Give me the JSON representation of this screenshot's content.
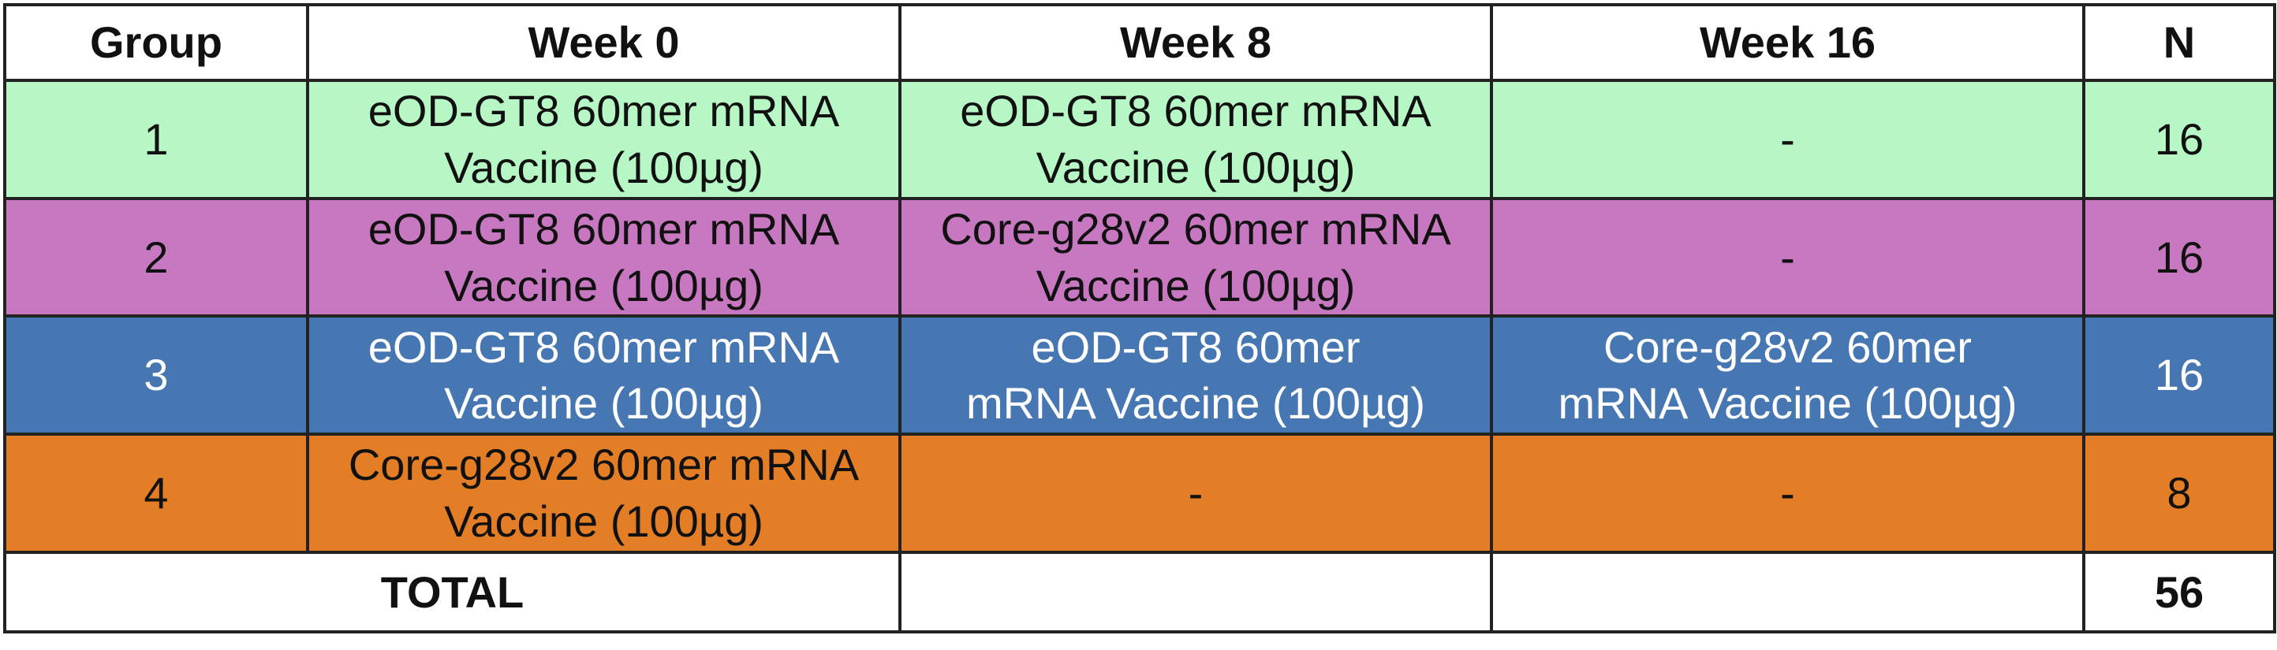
{
  "table": {
    "headers": {
      "group": "Group",
      "week0": "Week 0",
      "week8": "Week 8",
      "week16": "Week 16",
      "n": "N"
    },
    "rows": [
      {
        "group": "1",
        "week0": [
          "eOD-GT8 60mer mRNA",
          "Vaccine (100µg)"
        ],
        "week8": [
          "eOD-GT8 60mer mRNA",
          "Vaccine (100µg)"
        ],
        "week16": [
          "-"
        ],
        "n": "16",
        "color": "#b7f7c5"
      },
      {
        "group": "2",
        "week0": [
          "eOD-GT8 60mer mRNA",
          "Vaccine (100µg)"
        ],
        "week8": [
          "Core-g28v2 60mer mRNA",
          "Vaccine (100µg)"
        ],
        "week16": [
          "-"
        ],
        "n": "16",
        "color": "#c878c0"
      },
      {
        "group": "3",
        "week0": [
          "eOD-GT8 60mer mRNA",
          "Vaccine (100µg)"
        ],
        "week8": [
          "eOD-GT8 60mer",
          "mRNA Vaccine (100µg)"
        ],
        "week16": [
          "Core-g28v2 60mer",
          "mRNA Vaccine (100µg)"
        ],
        "n": "16",
        "color": "#4677b3"
      },
      {
        "group": "4",
        "week0": [
          "Core-g28v2 60mer mRNA",
          "Vaccine (100µg)"
        ],
        "week8": [
          "-"
        ],
        "week16": [
          "-"
        ],
        "n": "8",
        "color": "#e47e26"
      }
    ],
    "total": {
      "label": "TOTAL",
      "week8": "",
      "week16": "",
      "n": "56"
    }
  }
}
